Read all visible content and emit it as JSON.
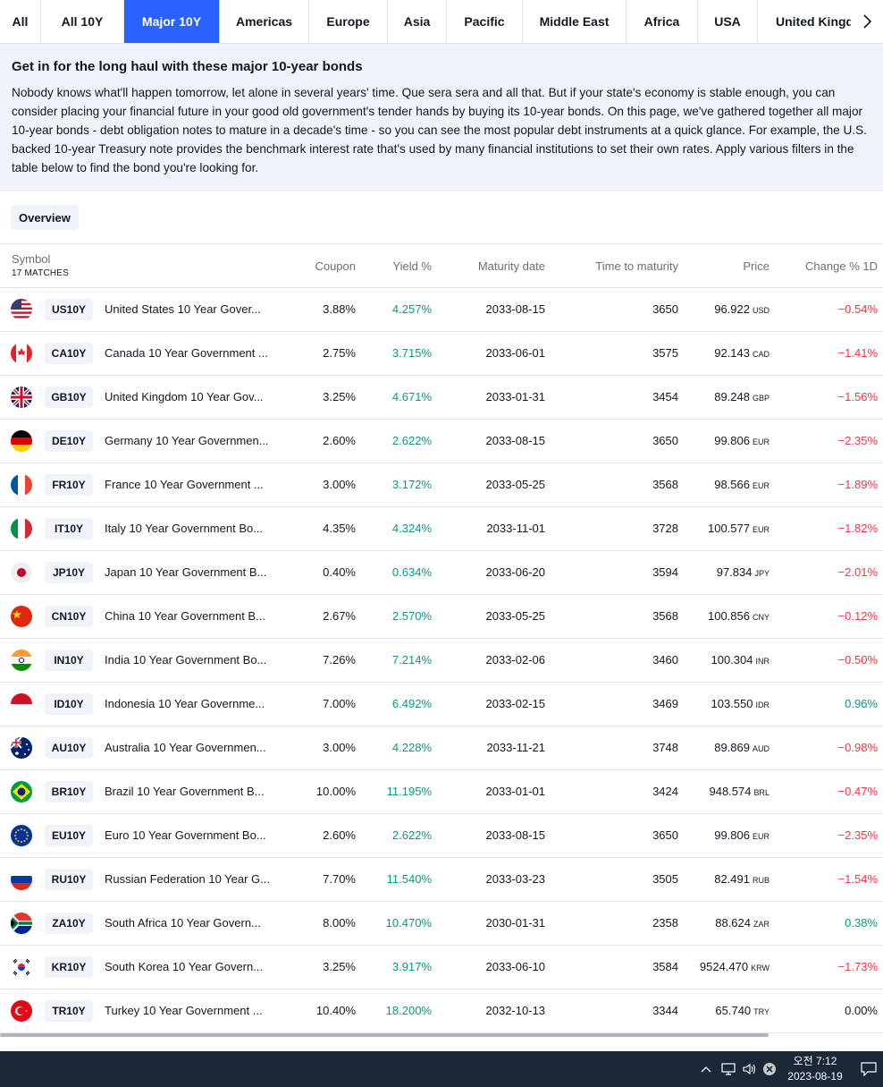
{
  "tabs": [
    {
      "label": "All",
      "active": false
    },
    {
      "label": "All 10Y",
      "active": false
    },
    {
      "label": "Major 10Y",
      "active": true
    },
    {
      "label": "Americas",
      "active": false
    },
    {
      "label": "Europe",
      "active": false
    },
    {
      "label": "Asia",
      "active": false
    },
    {
      "label": "Pacific",
      "active": false
    },
    {
      "label": "Middle East",
      "active": false
    },
    {
      "label": "Africa",
      "active": false
    },
    {
      "label": "USA",
      "active": false
    },
    {
      "label": "United Kingdom",
      "active": false
    }
  ],
  "intro": {
    "title": "Get in for the long haul with these major 10-year bonds",
    "text": "Nobody knows what'll happen tomorrow, let alone in several years' time. Que sera sera and all that. But if your state's economy is stable enough, you can consider placing your financial future in your good old government's tender hands by buying its 10-year bonds. On this page, we've gathered together all major 10-year bonds - debt obligation notes to mature in a decade's time - so you can see the most popular debt instruments at a quick glance. For example, the U.S. backed 10-year Treasury note provides the benchmark interest rate that's used by many financial institutions to set their own rates. Apply various filters in the table below to find the bond you're looking for."
  },
  "overview_label": "Overview",
  "table": {
    "headers": {
      "symbol": "Symbol",
      "matches": "17 MATCHES",
      "coupon": "Coupon",
      "yield": "Yield %",
      "maturity": "Maturity date",
      "ttm": "Time to maturity",
      "price": "Price",
      "change": "Change % 1D"
    },
    "rows": [
      {
        "flag": "us-flag-icon",
        "ticker": "US10Y",
        "name": "United States 10 Year Gover...",
        "coupon": "3.88%",
        "yield": "4.257%",
        "maturity": "2033-08-15",
        "ttm": "3650",
        "price": "96.922",
        "currency": "USD",
        "change": "−0.54%",
        "dir": "down"
      },
      {
        "flag": "ca-flag-icon",
        "ticker": "CA10Y",
        "name": "Canada 10 Year Government ...",
        "coupon": "2.75%",
        "yield": "3.715%",
        "maturity": "2033-06-01",
        "ttm": "3575",
        "price": "92.143",
        "currency": "CAD",
        "change": "−1.41%",
        "dir": "down"
      },
      {
        "flag": "gb-flag-icon",
        "ticker": "GB10Y",
        "name": "United Kingdom 10 Year Gov...",
        "coupon": "3.25%",
        "yield": "4.671%",
        "maturity": "2033-01-31",
        "ttm": "3454",
        "price": "89.248",
        "currency": "GBP",
        "change": "−1.56%",
        "dir": "down"
      },
      {
        "flag": "de-flag-icon",
        "ticker": "DE10Y",
        "name": "Germany 10 Year Governmen...",
        "coupon": "2.60%",
        "yield": "2.622%",
        "maturity": "2033-08-15",
        "ttm": "3650",
        "price": "99.806",
        "currency": "EUR",
        "change": "−2.35%",
        "dir": "down"
      },
      {
        "flag": "fr-flag-icon",
        "ticker": "FR10Y",
        "name": "France 10 Year Government ...",
        "coupon": "3.00%",
        "yield": "3.172%",
        "maturity": "2033-05-25",
        "ttm": "3568",
        "price": "98.566",
        "currency": "EUR",
        "change": "−1.89%",
        "dir": "down"
      },
      {
        "flag": "it-flag-icon",
        "ticker": "IT10Y",
        "name": "Italy 10 Year Government Bo...",
        "coupon": "4.35%",
        "yield": "4.324%",
        "maturity": "2033-11-01",
        "ttm": "3728",
        "price": "100.577",
        "currency": "EUR",
        "change": "−1.82%",
        "dir": "down"
      },
      {
        "flag": "jp-flag-icon",
        "ticker": "JP10Y",
        "name": "Japan 10 Year Government B...",
        "coupon": "0.40%",
        "yield": "0.634%",
        "maturity": "2033-06-20",
        "ttm": "3594",
        "price": "97.834",
        "currency": "JPY",
        "change": "−2.01%",
        "dir": "down"
      },
      {
        "flag": "cn-flag-icon",
        "ticker": "CN10Y",
        "name": "China 10 Year Government B...",
        "coupon": "2.67%",
        "yield": "2.570%",
        "maturity": "2033-05-25",
        "ttm": "3568",
        "price": "100.856",
        "currency": "CNY",
        "change": "−0.12%",
        "dir": "down"
      },
      {
        "flag": "in-flag-icon",
        "ticker": "IN10Y",
        "name": "India 10 Year Government Bo...",
        "coupon": "7.26%",
        "yield": "7.214%",
        "maturity": "2033-02-06",
        "ttm": "3460",
        "price": "100.304",
        "currency": "INR",
        "change": "−0.50%",
        "dir": "down"
      },
      {
        "flag": "id-flag-icon",
        "ticker": "ID10Y",
        "name": "Indonesia 10 Year Governme...",
        "coupon": "7.00%",
        "yield": "6.492%",
        "maturity": "2033-02-15",
        "ttm": "3469",
        "price": "103.550",
        "currency": "IDR",
        "change": "0.96%",
        "dir": "up"
      },
      {
        "flag": "au-flag-icon",
        "ticker": "AU10Y",
        "name": "Australia 10 Year Governmen...",
        "coupon": "3.00%",
        "yield": "4.228%",
        "maturity": "2033-11-21",
        "ttm": "3748",
        "price": "89.869",
        "currency": "AUD",
        "change": "−0.98%",
        "dir": "down"
      },
      {
        "flag": "br-flag-icon",
        "ticker": "BR10Y",
        "name": "Brazil 10 Year Government B...",
        "coupon": "10.00%",
        "yield": "11.195%",
        "maturity": "2033-01-01",
        "ttm": "3424",
        "price": "948.574",
        "currency": "BRL",
        "change": "−0.47%",
        "dir": "down"
      },
      {
        "flag": "eu-flag-icon",
        "ticker": "EU10Y",
        "name": "Euro 10 Year Government Bo...",
        "coupon": "2.60%",
        "yield": "2.622%",
        "maturity": "2033-08-15",
        "ttm": "3650",
        "price": "99.806",
        "currency": "EUR",
        "change": "−2.35%",
        "dir": "down"
      },
      {
        "flag": "ru-flag-icon",
        "ticker": "RU10Y",
        "name": "Russian Federation 10 Year G...",
        "coupon": "7.70%",
        "yield": "11.540%",
        "maturity": "2033-03-23",
        "ttm": "3505",
        "price": "82.491",
        "currency": "RUB",
        "change": "−1.54%",
        "dir": "down"
      },
      {
        "flag": "za-flag-icon",
        "ticker": "ZA10Y",
        "name": "South Africa 10 Year Govern...",
        "coupon": "8.00%",
        "yield": "10.470%",
        "maturity": "2030-01-31",
        "ttm": "2358",
        "price": "88.624",
        "currency": "ZAR",
        "change": "0.38%",
        "dir": "up"
      },
      {
        "flag": "kr-flag-icon",
        "ticker": "KR10Y",
        "name": "South Korea 10 Year Govern...",
        "coupon": "3.25%",
        "yield": "3.917%",
        "maturity": "2033-06-10",
        "ttm": "3584",
        "price": "9524.470",
        "currency": "KRW",
        "change": "−1.73%",
        "dir": "down"
      },
      {
        "flag": "tr-flag-icon",
        "ticker": "TR10Y",
        "name": "Turkey 10 Year Government ...",
        "coupon": "10.40%",
        "yield": "18.200%",
        "maturity": "2032-10-13",
        "ttm": "3344",
        "price": "65.740",
        "currency": "TRY",
        "change": "0.00%",
        "dir": "flat"
      }
    ]
  },
  "colors": {
    "accent": "#2962ff",
    "up": "#089981",
    "down": "#f23645",
    "taskbar": "#1b2838"
  },
  "taskbar": {
    "time": "오전 7:12",
    "date": "2023-08-19"
  }
}
